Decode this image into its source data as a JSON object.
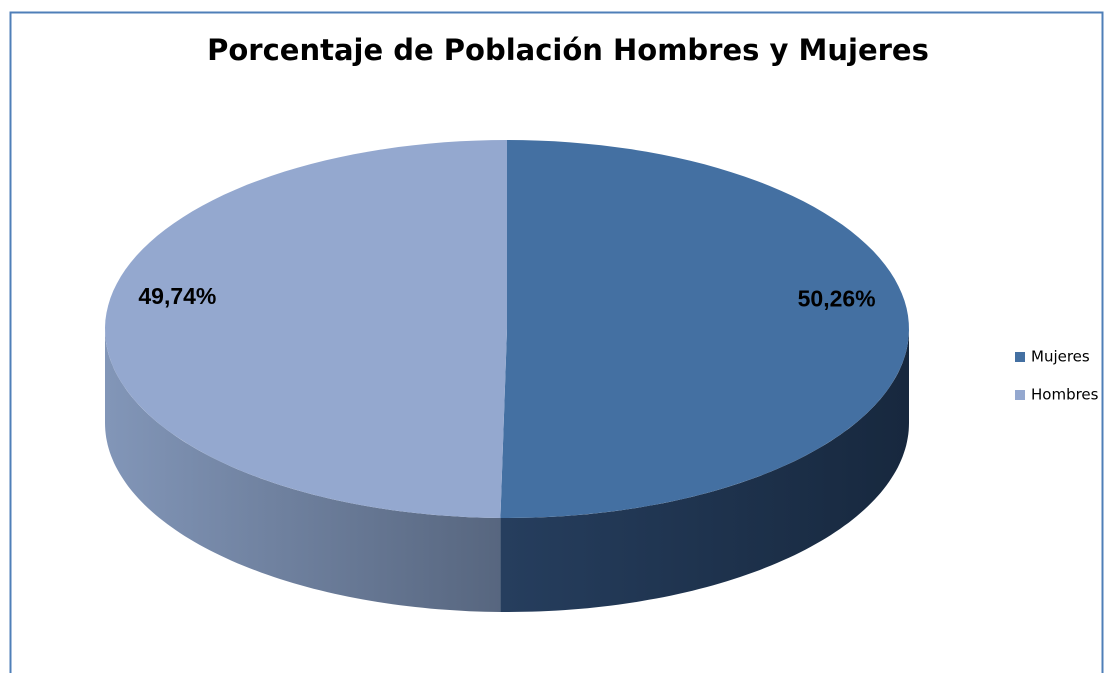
{
  "chart_data": {
    "type": "pie",
    "title": "Porcentaje de Población Hombres y Mujeres",
    "categories": [
      "Mujeres",
      "Hombres"
    ],
    "values": [
      50.26,
      49.74
    ],
    "value_labels": [
      "50,26%",
      "49,74%"
    ],
    "colors": [
      "#4470a2",
      "#94a8cf"
    ],
    "legend": "right"
  }
}
